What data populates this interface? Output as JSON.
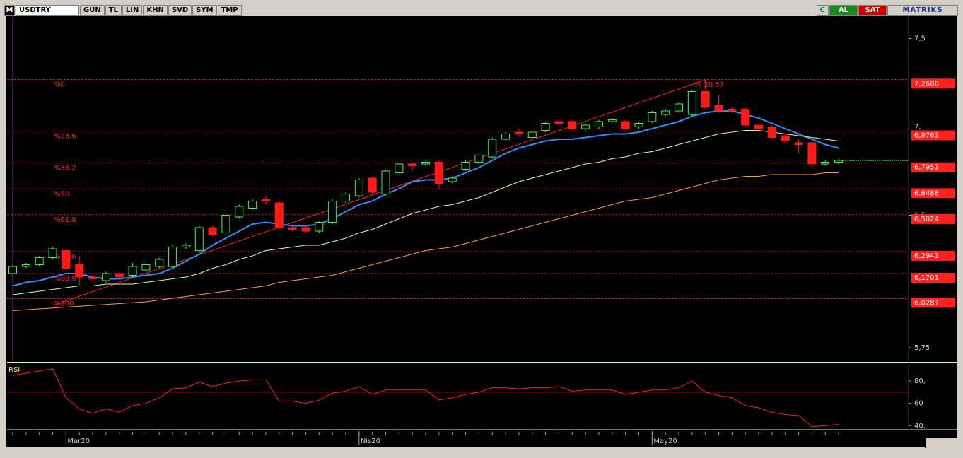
{
  "toolbar": {
    "logo": "M",
    "symbol": "USDTRY",
    "buttons": [
      "GUN",
      "TL",
      "LIN",
      "KHN",
      "SVD",
      "SYM",
      "TMP"
    ],
    "right_buttons": [
      "C",
      "AL",
      "SAT"
    ],
    "brand": "MATRIKS"
  },
  "chart_data": [
    {
      "type": "candlestick",
      "ylim": [
        5.67,
        7.63
      ],
      "yticks": [
        {
          "value": 7.5,
          "label": "7,5"
        },
        {
          "value": 7,
          "label": "7,"
        },
        {
          "value": 6.5,
          "label": "6,5"
        },
        {
          "value": 5.75,
          "label": "5,75"
        }
      ],
      "x_labels": [
        {
          "value": 4,
          "label": "Mar20"
        },
        {
          "value": 26,
          "label": "Nis20"
        },
        {
          "value": 48,
          "label": "May20"
        }
      ],
      "up_color": "#33ff33",
      "down_color": "#ff1a1a",
      "open": [
        6.17,
        6.21,
        6.22,
        6.26,
        6.3,
        6.22,
        6.15,
        6.13,
        6.17,
        6.16,
        6.19,
        6.21,
        6.21,
        6.32,
        6.3,
        6.43,
        6.4,
        6.49,
        6.54,
        6.59,
        6.57,
        6.43,
        6.43,
        6.41,
        6.46,
        6.58,
        6.61,
        6.71,
        6.62,
        6.74,
        6.79,
        6.79,
        6.8,
        6.69,
        6.76,
        6.8,
        6.83,
        6.93,
        6.97,
        6.94,
        6.98,
        7.03,
        7.03,
        6.99,
        7.0,
        7.03,
        7.03,
        7.0,
        7.03,
        7.07,
        7.09,
        7.07,
        7.2,
        7.12,
        7.1,
        7.1,
        7.01,
        7.0,
        6.95,
        6.91,
        6.91,
        6.79,
        6.8
      ],
      "high": [
        6.22,
        6.23,
        6.27,
        6.32,
        6.31,
        6.27,
        6.16,
        6.18,
        6.18,
        6.23,
        6.23,
        6.26,
        6.33,
        6.34,
        6.44,
        6.44,
        6.51,
        6.56,
        6.59,
        6.61,
        6.58,
        6.44,
        6.44,
        6.47,
        6.59,
        6.63,
        6.71,
        6.72,
        6.76,
        6.8,
        6.8,
        6.81,
        6.81,
        6.72,
        6.81,
        6.85,
        6.94,
        6.97,
        6.99,
        6.98,
        7.03,
        7.04,
        7.04,
        7.02,
        7.04,
        7.05,
        7.04,
        7.03,
        7.09,
        7.1,
        7.14,
        7.21,
        7.27,
        7.18,
        7.11,
        7.11,
        7.02,
        7.01,
        6.96,
        6.93,
        6.92,
        6.81,
        6.82
      ],
      "low": [
        6.16,
        6.2,
        6.21,
        6.25,
        6.19,
        6.1,
        6.13,
        6.12,
        6.14,
        6.15,
        6.18,
        6.2,
        6.2,
        6.31,
        6.29,
        6.38,
        6.39,
        6.48,
        6.53,
        6.56,
        6.42,
        6.41,
        6.4,
        6.4,
        6.45,
        6.57,
        6.6,
        6.62,
        6.61,
        6.73,
        6.75,
        6.78,
        6.65,
        6.68,
        6.75,
        6.79,
        6.82,
        6.92,
        6.95,
        6.93,
        6.97,
        7.01,
        6.98,
        6.98,
        6.99,
        7.02,
        6.98,
        6.99,
        7.02,
        7.06,
        7.08,
        7.06,
        7.1,
        7.08,
        7.08,
        7.0,
        6.98,
        6.93,
        6.91,
        6.85,
        6.77,
        6.78,
        6.79
      ],
      "close": [
        6.21,
        6.22,
        6.26,
        6.31,
        6.2,
        6.15,
        6.14,
        6.17,
        6.15,
        6.21,
        6.22,
        6.25,
        6.32,
        6.33,
        6.43,
        6.39,
        6.5,
        6.55,
        6.58,
        6.58,
        6.43,
        6.42,
        6.41,
        6.46,
        6.58,
        6.62,
        6.7,
        6.63,
        6.75,
        6.79,
        6.78,
        6.8,
        6.68,
        6.71,
        6.8,
        6.84,
        6.93,
        6.96,
        6.96,
        6.97,
        7.02,
        7.02,
        6.99,
        7.01,
        7.03,
        7.04,
        6.99,
        7.02,
        7.08,
        7.09,
        7.13,
        7.2,
        7.11,
        7.09,
        7.09,
        7.01,
        6.99,
        6.94,
        6.92,
        6.9,
        6.79,
        6.8,
        6.81
      ],
      "overlays": [
        {
          "color": "#2f8cff",
          "values": [
            6.1,
            6.12,
            6.13,
            6.15,
            6.17,
            6.17,
            6.15,
            6.14,
            6.14,
            6.15,
            6.16,
            6.17,
            6.2,
            6.24,
            6.28,
            6.33,
            6.37,
            6.41,
            6.45,
            6.46,
            6.45,
            6.44,
            6.44,
            6.45,
            6.48,
            6.52,
            6.56,
            6.58,
            6.62,
            6.65,
            6.69,
            6.7,
            6.7,
            6.71,
            6.74,
            6.77,
            6.81,
            6.85,
            6.88,
            6.9,
            6.92,
            6.93,
            6.93,
            6.94,
            6.95,
            6.96,
            6.96,
            6.97,
            6.99,
            7.01,
            7.03,
            7.06,
            7.08,
            7.09,
            7.09,
            7.07,
            7.05,
            7.02,
            6.99,
            6.96,
            6.93,
            6.9,
            6.88
          ]
        },
        {
          "color": "#ccffaa",
          "values": [
            6.05,
            6.06,
            6.07,
            6.08,
            6.09,
            6.1,
            6.1,
            6.11,
            6.11,
            6.11,
            6.12,
            6.13,
            6.14,
            6.15,
            6.17,
            6.2,
            6.22,
            6.25,
            6.27,
            6.3,
            6.31,
            6.32,
            6.33,
            6.33,
            6.35,
            6.37,
            6.4,
            6.42,
            6.45,
            6.48,
            6.51,
            6.53,
            6.55,
            6.56,
            6.58,
            6.6,
            6.63,
            6.66,
            6.69,
            6.71,
            6.73,
            6.75,
            6.77,
            6.79,
            6.8,
            6.82,
            6.83,
            6.85,
            6.86,
            6.88,
            6.9,
            6.92,
            6.94,
            6.96,
            6.97,
            6.98,
            6.98,
            6.97,
            6.96,
            6.95,
            6.94,
            6.93,
            6.92
          ]
        },
        {
          "color": "#ff9a40",
          "values": [
            5.96,
            5.965,
            5.97,
            5.975,
            5.98,
            5.985,
            5.99,
            5.995,
            6.0,
            6.005,
            6.01,
            6.02,
            6.03,
            6.04,
            6.05,
            6.06,
            6.07,
            6.08,
            6.09,
            6.1,
            6.12,
            6.13,
            6.14,
            6.15,
            6.16,
            6.18,
            6.2,
            6.22,
            6.24,
            6.26,
            6.28,
            6.3,
            6.31,
            6.32,
            6.34,
            6.36,
            6.38,
            6.4,
            6.42,
            6.44,
            6.46,
            6.48,
            6.5,
            6.52,
            6.54,
            6.56,
            6.58,
            6.59,
            6.6,
            6.62,
            6.64,
            6.66,
            6.68,
            6.7,
            6.71,
            6.72,
            6.72,
            6.73,
            6.73,
            6.73,
            6.73,
            6.74,
            6.74
          ]
        }
      ],
      "fib_levels": {
        "names": [
          "%0.",
          "%23.6",
          "%38.2",
          "%50.",
          "%61.8",
          "%78.6",
          "%88.6",
          "%100"
        ],
        "values": [
          7.2688,
          6.9761,
          6.7951,
          6.6488,
          6.5024,
          6.2941,
          6.1701,
          6.0287
        ],
        "value_labels": [
          "7,2688",
          "6,9761",
          "6,7951",
          "6,6488",
          "6,5024",
          "6,2941",
          "6,1701",
          "6,0287"
        ],
        "color": "#ff2020"
      },
      "annotation": "% 20.57"
    },
    {
      "type": "line",
      "title": "RSI",
      "ylim": [
        37,
        94
      ],
      "yticks": [
        {
          "value": 80,
          "label": "80,"
        },
        60,
        {
          "value": 40,
          "label": "40,"
        }
      ],
      "level": 70,
      "color": "#ff2020",
      "values": [
        85,
        87,
        89,
        91,
        65,
        55,
        51,
        55,
        52,
        58,
        60,
        65,
        73,
        74,
        79,
        75,
        78,
        80,
        81,
        81,
        62,
        62,
        60,
        63,
        69,
        71,
        75,
        68,
        72,
        72,
        72,
        72,
        63,
        65,
        68,
        70,
        74,
        74,
        73,
        74,
        74,
        75,
        71,
        72,
        72,
        72,
        68,
        70,
        72,
        72,
        74,
        80,
        70,
        67,
        65,
        58,
        56,
        52,
        50,
        49,
        39,
        40,
        41
      ]
    }
  ]
}
